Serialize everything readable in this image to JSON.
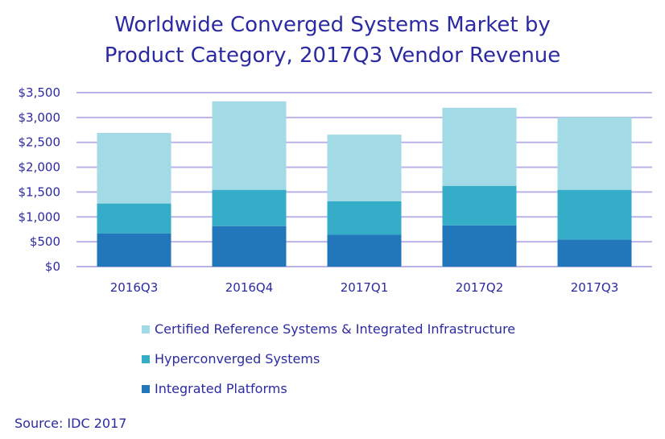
{
  "chart_data": {
    "type": "bar",
    "stacked": true,
    "title": "Worldwide Converged Systems Market by Product Category, 2017Q3 Vendor Revenue",
    "title_lines": [
      "Worldwide Converged Systems Market by",
      "Product Category, 2017Q3 Vendor Revenue"
    ],
    "xlabel": "",
    "ylabel": "",
    "categories": [
      "2016Q3",
      "2016Q4",
      "2017Q1",
      "2017Q2",
      "2017Q3"
    ],
    "ylim": [
      0,
      3500
    ],
    "yticks": [
      0,
      500,
      1000,
      1500,
      2000,
      2500,
      3000,
      3500
    ],
    "ytick_labels": [
      "$0",
      "$500",
      "$1,000",
      "$1,500",
      "$2,000",
      "$2,500",
      "$3,000",
      "$3,500"
    ],
    "grid": true,
    "legend_position": "bottom",
    "series": [
      {
        "name": "Integrated Platforms",
        "color": "#2277bb",
        "values": [
          670,
          815,
          640,
          830,
          545
        ]
      },
      {
        "name": "Hyperconverged Systems",
        "color": "#35adc8",
        "values": [
          600,
          730,
          675,
          795,
          1000
        ]
      },
      {
        "name": "Certified Reference Systems & Integrated Infrastructure",
        "color": "#a2dae5",
        "values": [
          1420,
          1780,
          1340,
          1570,
          1460
        ]
      }
    ],
    "grid_color": "#b8b4e8"
  },
  "source": "Source: IDC 2017"
}
